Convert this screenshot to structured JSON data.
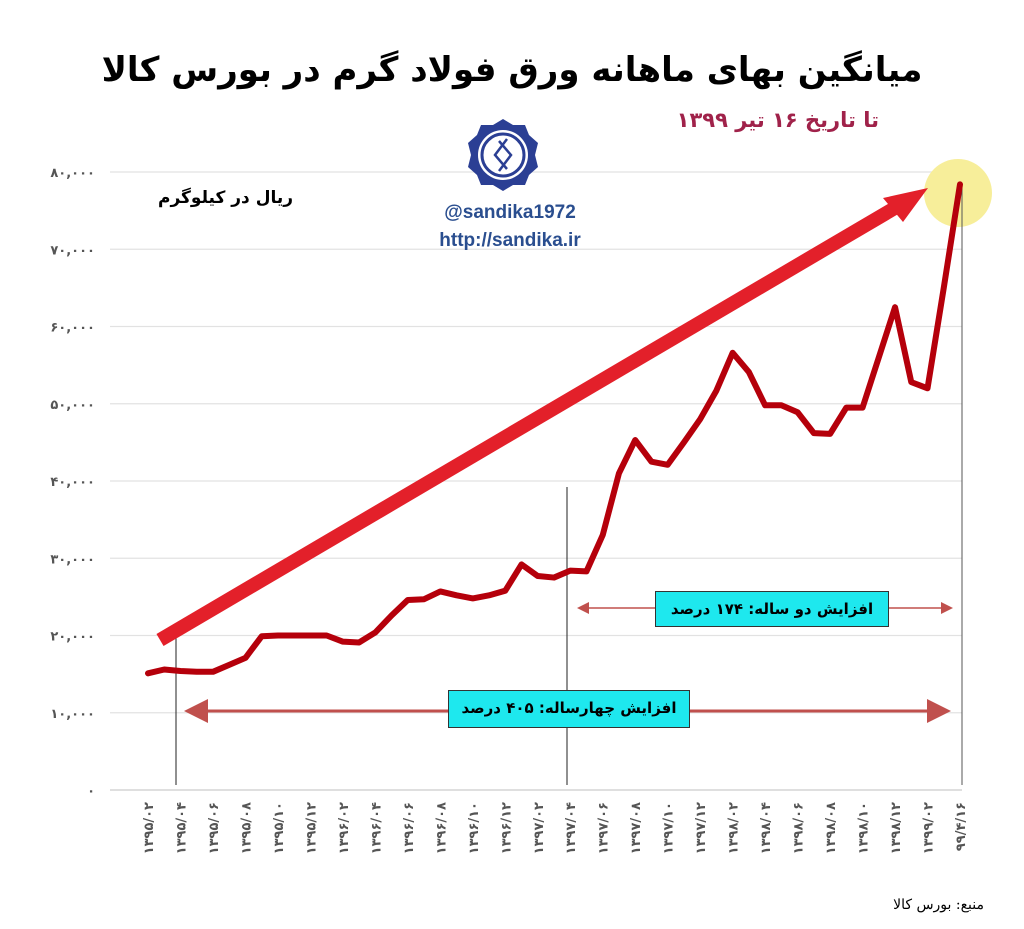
{
  "header": {
    "title": "میانگین بهای ماهانه ورق فولاد گرم در بورس کالا",
    "subtitle": "تا تاریخ ۱۶ تیر ۱۳۹۹",
    "unit_label": "ریال در کیلوگرم"
  },
  "branding": {
    "logo_icon": "sandika-gear-logo",
    "handle": "@sandika1972",
    "url": "http://sandika.ir"
  },
  "annotations": {
    "two_year": "افزایش دو ساله: ۱۷۴ درصد",
    "four_year": "افزایش چهارساله: ۴۰۵ درصد"
  },
  "footer": {
    "source": "منبع: بورس کالا"
  },
  "colors": {
    "line": "#b5000b",
    "trend_arrow": "#e3202a",
    "highlight": "#f7ee9a",
    "annotation_box": "#1ee8ee",
    "range_arrow": "#c0504d",
    "subtitle": "#a0224a"
  },
  "chart_data": {
    "type": "line",
    "title": "میانگین بهای ماهانه ورق فولاد گرم در بورس کالا",
    "ylabel": "ریال در کیلوگرم",
    "ylim": [
      0,
      80000
    ],
    "grid": true,
    "yticks": [
      "۰",
      "۱۰,۰۰۰",
      "۲۰,۰۰۰",
      "۳۰,۰۰۰",
      "۴۰,۰۰۰",
      "۵۰,۰۰۰",
      "۶۰,۰۰۰",
      "۷۰,۰۰۰",
      "۸۰,۰۰۰"
    ],
    "xtick_labels": [
      "۱۳۹۵/۰۲",
      "۱۳۹۵/۰۴",
      "۱۳۹۵/۰۶",
      "۱۳۹۵/۰۸",
      "۱۳۹۵/۱۰",
      "۱۳۹۵/۱۲",
      "۱۳۹۶/۰۲",
      "۱۳۹۶/۰۴",
      "۱۳۹۶/۰۶",
      "۱۳۹۶/۰۸",
      "۱۳۹۶/۱۰",
      "۱۳۹۶/۱۲",
      "۱۳۹۷/۰۲",
      "۱۳۹۷/۰۴",
      "۱۳۹۷/۰۶",
      "۱۳۹۷/۰۸",
      "۱۳۹۷/۱۰",
      "۱۳۹۷/۱۲",
      "۱۳۹۸/۰۲",
      "۱۳۹۸/۰۴",
      "۱۳۹۸/۰۶",
      "۱۳۹۸/۰۸",
      "۱۳۹۸/۱۰",
      "۱۳۹۸/۱۲",
      "۱۳۹۹/۰۲",
      "۹۹/۴/۱۶"
    ],
    "series": [
      {
        "values": [
          15100,
          15600,
          15400,
          15300,
          15300,
          16200,
          17100,
          19900,
          20000,
          20000,
          20000,
          20000,
          19200,
          19100,
          20400,
          22600,
          24600,
          24700,
          25700,
          25200,
          24800,
          25200,
          25800,
          29200,
          27700,
          27500,
          28400,
          28300,
          33000,
          41000,
          45300,
          42500,
          42100,
          45000,
          48000,
          51700,
          56600,
          54100,
          49800,
          49800,
          48900,
          46200,
          46100,
          49500,
          49500,
          56000,
          62500,
          52800,
          52000,
          65000,
          78400
        ]
      }
    ],
    "markers": {
      "four_year_start": "۱۳۹۵/۰۴",
      "two_year_start": "۱۳۹۷/۰۴",
      "end": "۹۹/۴/۱۶"
    }
  }
}
